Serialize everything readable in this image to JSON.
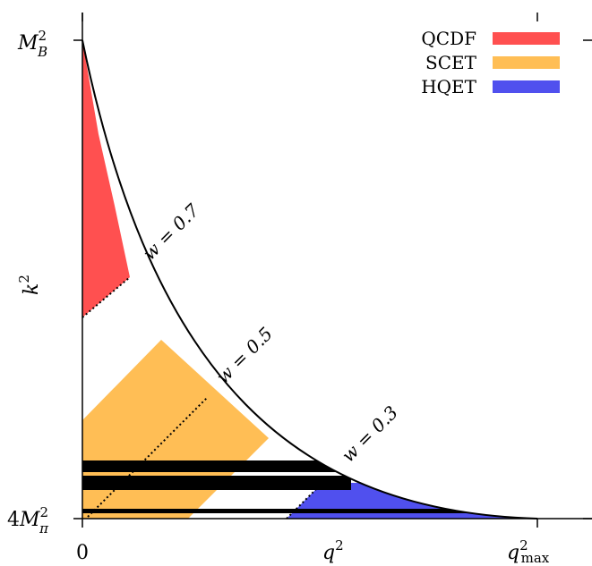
{
  "colors": {
    "qcdf": "#ff5050",
    "scet": "#ffbe55",
    "hqet": "#5050ee",
    "frame": "#000000"
  },
  "legend": [
    {
      "label": "QCDF",
      "color": "#ff5050"
    },
    {
      "label": "SCET",
      "color": "#ffbe55"
    },
    {
      "label": "HQET",
      "color": "#5050ee"
    }
  ],
  "axes": {
    "x_label": "q",
    "x_label_sup": "2",
    "y_label": "k",
    "y_label_sup": "2",
    "x_ticks": [
      {
        "text": "0",
        "sub": "",
        "sup": ""
      },
      {
        "text": "q",
        "sub": "max",
        "sup": "2"
      }
    ],
    "y_ticks": [
      {
        "prefix": "",
        "text": "M",
        "sub": "B",
        "sup": "2"
      },
      {
        "prefix": "4",
        "text": "M",
        "sub": "π",
        "sup": "2"
      }
    ]
  },
  "w_lines": [
    {
      "label": "w = 0.7"
    },
    {
      "label": "w = 0.5"
    },
    {
      "label": "w = 0.3"
    }
  ]
}
